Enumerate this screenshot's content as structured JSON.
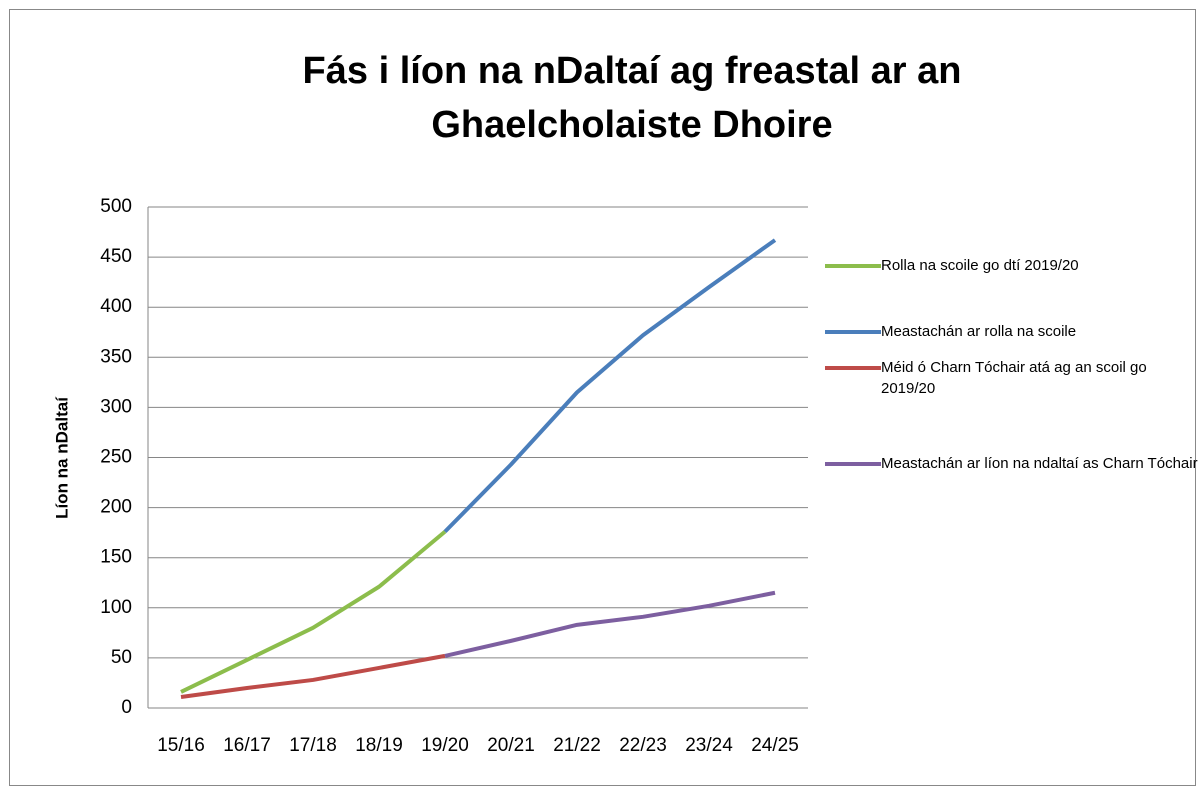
{
  "chart_data": {
    "type": "line",
    "title": "Fás i líon na nDaltaí ag freastal ar an Ghaelcholaiste Dhoire",
    "y_label": "Líon na nDaltaí",
    "categories": [
      "15/16",
      "16/17",
      "17/18",
      "18/19",
      "19/20",
      "20/21",
      "21/22",
      "22/23",
      "23/24",
      "24/25"
    ],
    "series": [
      {
        "name": "Rolla na scoile go dtí 2019/20",
        "color": "#8cbd4c",
        "values": [
          16,
          48,
          80,
          121,
          176,
          null,
          null,
          null,
          null,
          null
        ]
      },
      {
        "name": "Meastachán ar rolla na scoile",
        "color": "#4a7ebb",
        "values": [
          null,
          null,
          null,
          null,
          176,
          243,
          315,
          372,
          420,
          467
        ]
      },
      {
        "name": "Méid ó Charn Tóchair atá ag an scoil go 2019/20",
        "color": "#be4b48",
        "values": [
          11,
          20,
          28,
          40,
          52,
          null,
          null,
          null,
          null,
          null
        ]
      },
      {
        "name": "Meastachán ar líon na ndaltaí as Charn Tóchair",
        "color": "#7d5fa0",
        "values": [
          null,
          null,
          null,
          null,
          52,
          67,
          83,
          91,
          102,
          115
        ]
      }
    ],
    "ylim": [
      0,
      500
    ],
    "yticks": [
      0,
      50,
      100,
      150,
      200,
      250,
      300,
      350,
      400,
      450,
      500
    ],
    "grid": true,
    "legend": "right"
  }
}
